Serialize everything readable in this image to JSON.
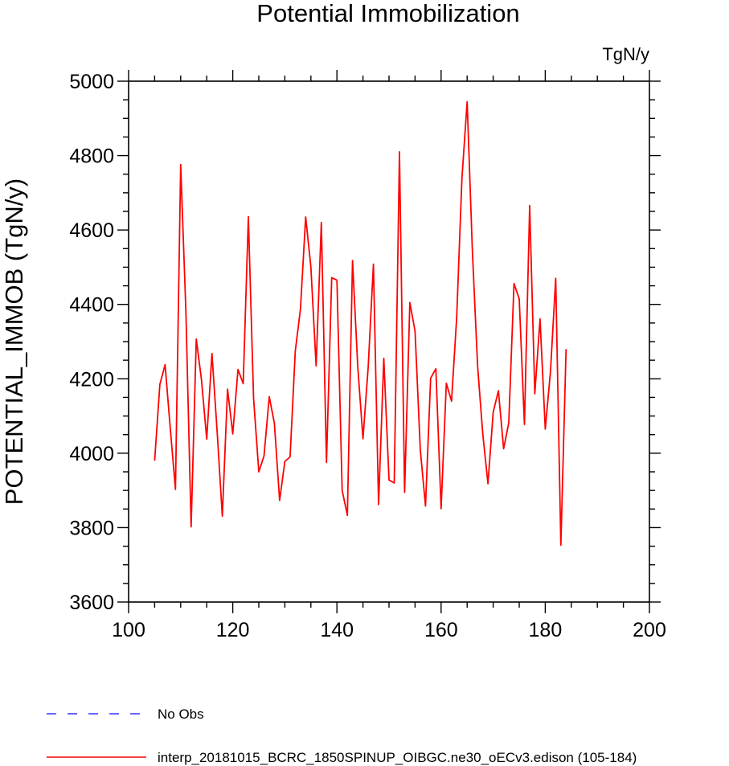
{
  "chart_data": {
    "type": "line",
    "title": "Potential Immobilization",
    "units": "TgN/y",
    "ylabel": "POTENTIAL_IMMOB  (TgN/y)",
    "xlabel": "",
    "xlim": [
      100,
      200
    ],
    "ylim": [
      3600,
      5000
    ],
    "xticks": [
      100,
      120,
      140,
      160,
      180,
      200
    ],
    "yticks": [
      3600,
      3800,
      4000,
      4200,
      4400,
      4600,
      4800,
      5000
    ],
    "grid": false,
    "legend_position": "bottom-left",
    "series": [
      {
        "name": "No Obs",
        "color": "#3333ff",
        "style": "dashed",
        "x": [],
        "y": []
      },
      {
        "name": "interp_20181015_BCRC_1850SPINUP_OIBGC.ne30_oECv3.edison (105-184)",
        "color": "#ff0000",
        "style": "solid",
        "x": [
          105,
          106,
          107,
          108,
          109,
          110,
          111,
          112,
          113,
          114,
          115,
          116,
          117,
          118,
          119,
          120,
          121,
          122,
          123,
          124,
          125,
          126,
          127,
          128,
          129,
          130,
          131,
          132,
          133,
          134,
          135,
          136,
          137,
          138,
          139,
          140,
          141,
          142,
          143,
          144,
          145,
          146,
          147,
          148,
          149,
          150,
          151,
          152,
          153,
          154,
          155,
          156,
          157,
          158,
          159,
          160,
          161,
          162,
          163,
          164,
          165,
          166,
          167,
          168,
          169,
          170,
          171,
          172,
          173,
          174,
          175,
          176,
          177,
          178,
          179,
          180,
          181,
          182,
          183,
          184
        ],
        "y": [
          3980,
          4185,
          4238,
          4068,
          3903,
          4776,
          4380,
          3802,
          4307,
          4197,
          4038,
          4268,
          4057,
          3831,
          4172,
          4052,
          4225,
          4187,
          4636,
          4147,
          3950,
          3993,
          4152,
          4080,
          3873,
          3978,
          3990,
          4275,
          4387,
          4635,
          4500,
          4235,
          4620,
          3975,
          4472,
          4465,
          3900,
          3833,
          4518,
          4233,
          4039,
          4232,
          4508,
          3862,
          4255,
          3928,
          3920,
          4810,
          3895,
          4405,
          4328,
          4010,
          3858,
          4202,
          4227,
          3851,
          4188,
          4140,
          4365,
          4738,
          4945,
          4545,
          4235,
          4053,
          3918,
          4110,
          4168,
          4012,
          4082,
          4456,
          4415,
          4077,
          4666,
          4160,
          4361,
          4065,
          4220,
          4470,
          3753,
          4280
        ]
      }
    ]
  }
}
